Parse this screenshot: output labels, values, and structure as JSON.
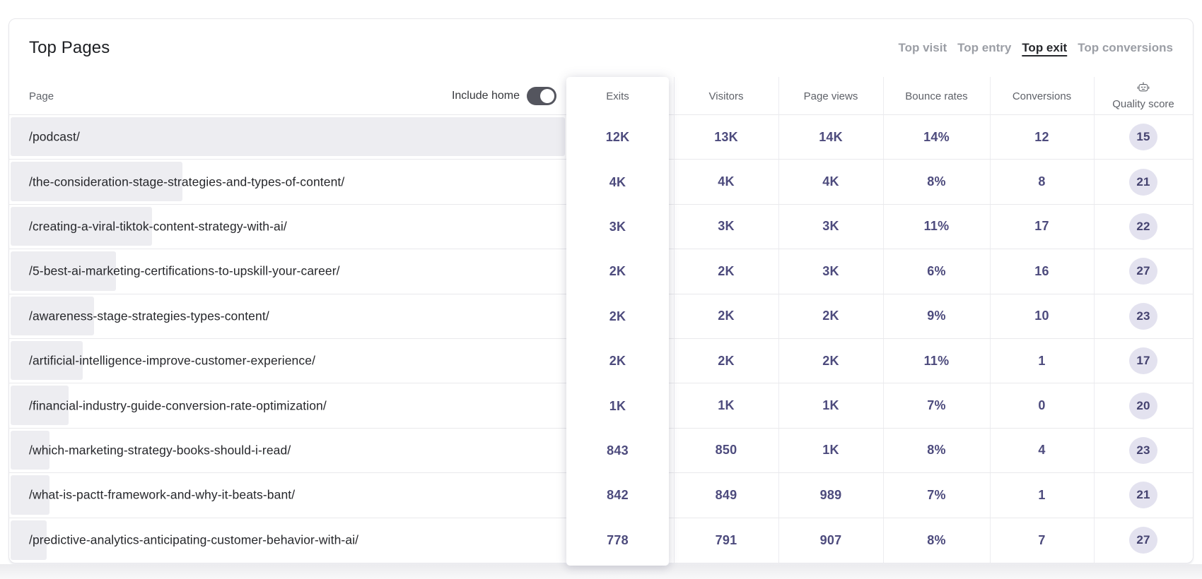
{
  "card": {
    "title": "Top Pages",
    "tabs": [
      {
        "label": "Top visit",
        "active": false
      },
      {
        "label": "Top entry",
        "active": false
      },
      {
        "label": "Top exit",
        "active": true
      },
      {
        "label": "Top conversions",
        "active": false
      }
    ]
  },
  "table": {
    "page_header": "Page",
    "include_home_label": "Include home",
    "include_home_on": true,
    "columns": [
      "Exits",
      "Visitors",
      "Page views",
      "Bounce rates",
      "Conversions",
      "Quality score"
    ],
    "quality_score_icon": "robot-icon",
    "rows": [
      {
        "path": "/podcast/",
        "bar_pct": 100,
        "exits": "12K",
        "visitors": "13K",
        "page_views": "14K",
        "bounce_rate": "14%",
        "conversions": "12",
        "quality_score": "15"
      },
      {
        "path": "/the-consideration-stage-strategies-and-types-of-content/",
        "bar_pct": 31,
        "exits": "4K",
        "visitors": "4K",
        "page_views": "4K",
        "bounce_rate": "8%",
        "conversions": "8",
        "quality_score": "21"
      },
      {
        "path": "/creating-a-viral-tiktok-content-strategy-with-ai/",
        "bar_pct": 25.5,
        "exits": "3K",
        "visitors": "3K",
        "page_views": "3K",
        "bounce_rate": "11%",
        "conversions": "17",
        "quality_score": "22"
      },
      {
        "path": "/5-best-ai-marketing-certifications-to-upskill-your-career/",
        "bar_pct": 19,
        "exits": "2K",
        "visitors": "2K",
        "page_views": "3K",
        "bounce_rate": "6%",
        "conversions": "16",
        "quality_score": "27"
      },
      {
        "path": "/awareness-stage-strategies-types-content/",
        "bar_pct": 15,
        "exits": "2K",
        "visitors": "2K",
        "page_views": "2K",
        "bounce_rate": "9%",
        "conversions": "10",
        "quality_score": "23"
      },
      {
        "path": "/artificial-intelligence-improve-customer-experience/",
        "bar_pct": 13,
        "exits": "2K",
        "visitors": "2K",
        "page_views": "2K",
        "bounce_rate": "11%",
        "conversions": "1",
        "quality_score": "17"
      },
      {
        "path": "/financial-industry-guide-conversion-rate-optimization/",
        "bar_pct": 10.5,
        "exits": "1K",
        "visitors": "1K",
        "page_views": "1K",
        "bounce_rate": "7%",
        "conversions": "0",
        "quality_score": "20"
      },
      {
        "path": "/which-marketing-strategy-books-should-i-read/",
        "bar_pct": 7,
        "exits": "843",
        "visitors": "850",
        "page_views": "1K",
        "bounce_rate": "8%",
        "conversions": "4",
        "quality_score": "23"
      },
      {
        "path": "/what-is-pactt-framework-and-why-it-beats-bant/",
        "bar_pct": 7,
        "exits": "842",
        "visitors": "849",
        "page_views": "989",
        "bounce_rate": "7%",
        "conversions": "1",
        "quality_score": "21"
      },
      {
        "path": "/predictive-analytics-anticipating-customer-behavior-with-ai/",
        "bar_pct": 6.5,
        "exits": "778",
        "visitors": "791",
        "page_views": "907",
        "bounce_rate": "8%",
        "conversions": "7",
        "quality_score": "27"
      }
    ]
  },
  "colors": {
    "accent_indigo": "#4d4b7d",
    "bar_fill": "#ededf1",
    "pill_bg": "#e3e2ef",
    "pill_text": "#454370",
    "toggle_on_bg": "#54555e",
    "header_text": "#5f6269",
    "tab_inactive": "#9b9ea5",
    "tab_active": "#26282c",
    "row_divider": "#e9e9ec"
  }
}
